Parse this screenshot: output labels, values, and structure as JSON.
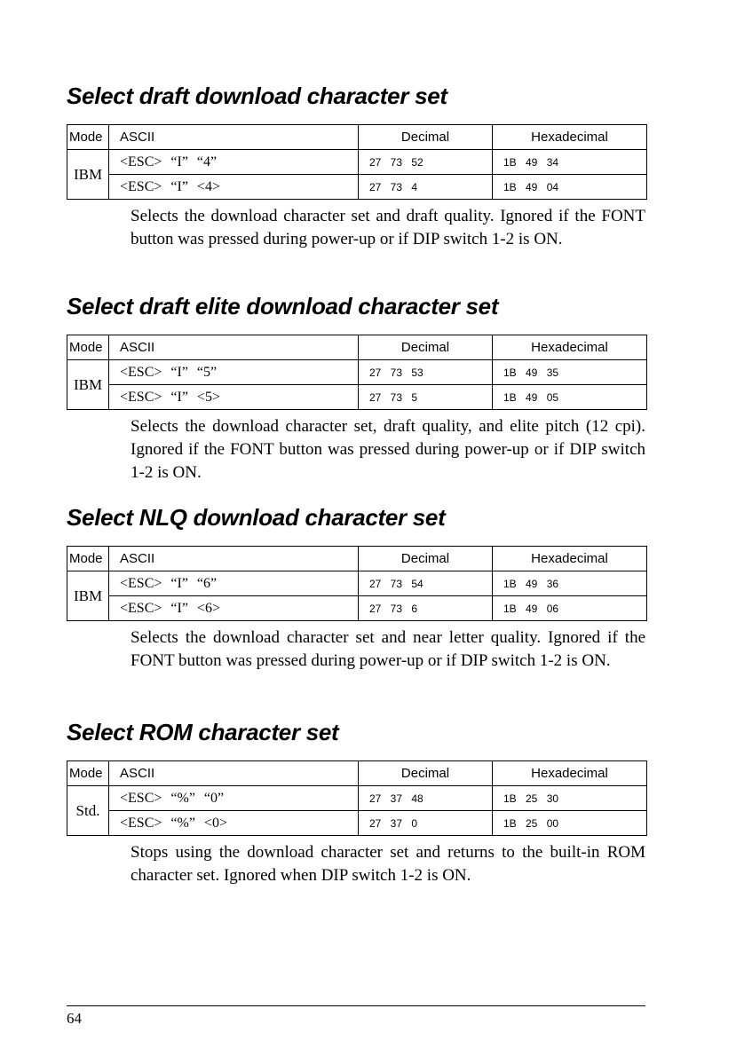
{
  "headers": {
    "mode": "Mode",
    "ascii": "ASCII",
    "decimal": "Decimal",
    "hex": "Hexadecimal"
  },
  "sections": [
    {
      "title": "Select draft download character set",
      "mode": "IBM",
      "rows": [
        {
          "ascii": "<ESC> “I” “4”",
          "decimal": "27 73 52",
          "hex": "1B 49 34"
        },
        {
          "ascii": "<ESC> “I” <4>",
          "decimal": "27 73 4",
          "hex": "1B 49 04"
        }
      ],
      "description": "Selects the download character set and draft quality. Ignored if the FONT button was pressed during power-up or if DIP switch 1-2 is ON."
    },
    {
      "title": "Select draft elite download character set",
      "mode": "IBM",
      "rows": [
        {
          "ascii": "<ESC> “I” “5”",
          "decimal": "27 73 53",
          "hex": "1B 49 35"
        },
        {
          "ascii": "<ESC> “I” <5>",
          "decimal": "27 73 5",
          "hex": "1B 49 05"
        }
      ],
      "description": "Selects the download character set, draft quality, and elite pitch (12 cpi). Ignored if the FONT button was pressed during power-up or if DIP switch 1-2 is ON."
    },
    {
      "title": "Select NLQ download character set",
      "mode": "IBM",
      "rows": [
        {
          "ascii": "<ESC> “I” “6”",
          "decimal": "27 73 54",
          "hex": "1B 49 36"
        },
        {
          "ascii": "<ESC> “I” <6>",
          "decimal": "27 73 6",
          "hex": "1B 49 06"
        }
      ],
      "description": "Selects the download character set and near letter quality. Ignored if the FONT button was pressed during power-up or if DIP switch 1-2 is ON."
    },
    {
      "title": "Select ROM character set",
      "mode": "Std.",
      "rows": [
        {
          "ascii": "<ESC> “%” “0”",
          "decimal": "27 37 48",
          "hex": "1B 25 30"
        },
        {
          "ascii": "<ESC> “%” <0>",
          "decimal": "27 37 0",
          "hex": "1B 25 00"
        }
      ],
      "description": "Stops using the download character set and returns to the built-in ROM character set. Ignored when DIP switch 1-2 is ON."
    }
  ],
  "footer": {
    "page_number": "64"
  }
}
